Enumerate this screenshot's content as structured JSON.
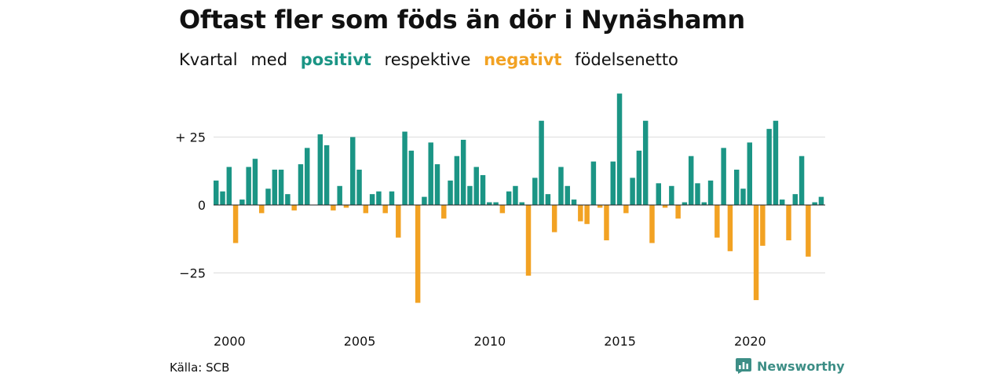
{
  "title": "Oftast fler som föds än dör i Nynäshamn",
  "subtitle": {
    "part1": "Kvartal",
    "part2": "med",
    "positive_word": "positivt",
    "part3": "respektive",
    "negative_word": "negativt",
    "part4": "födelsenetto"
  },
  "colors": {
    "positive": "#1b9585",
    "negative": "#f2a223",
    "grid": "#dcdcdc",
    "brand": "#3d8e86"
  },
  "source": "Källa: SCB",
  "brand": {
    "name": "Newsworthy",
    "icon": "bar-chart-badge-icon"
  },
  "chart_data": {
    "type": "bar",
    "x_start": "2000 Q1",
    "y_ticks": [
      25,
      0,
      -25
    ],
    "y_tick_labels": [
      "+ 25",
      "0",
      "−25"
    ],
    "x_ticks": [
      "2000",
      "2005",
      "2010",
      "2015",
      "2020"
    ],
    "ylim": [
      -40,
      42
    ],
    "grid": true,
    "values": [
      9,
      5,
      14,
      -14,
      2,
      14,
      17,
      -3,
      6,
      13,
      13,
      4,
      -2,
      15,
      21,
      0,
      26,
      22,
      -2,
      7,
      -1,
      25,
      13,
      -3,
      4,
      5,
      -3,
      5,
      -12,
      27,
      20,
      -36,
      3,
      23,
      15,
      -5,
      9,
      18,
      24,
      7,
      14,
      11,
      1,
      1,
      -3,
      5,
      7,
      1,
      -26,
      10,
      31,
      4,
      -10,
      14,
      7,
      2,
      -6,
      -7,
      16,
      -1,
      -13,
      16,
      41,
      -3,
      10,
      20,
      31,
      -14,
      8,
      -1,
      7,
      -5,
      1,
      18,
      8,
      1,
      9,
      -12,
      21,
      -17,
      13,
      6,
      23,
      -35,
      -15,
      28,
      31,
      2,
      -13,
      4,
      18,
      -19,
      1,
      3
    ]
  }
}
